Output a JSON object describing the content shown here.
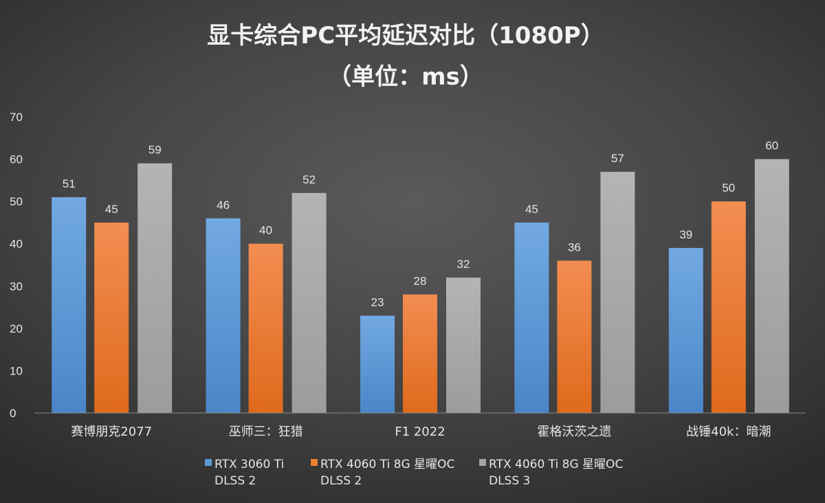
{
  "chart_data": {
    "type": "bar",
    "title": "显卡综合PC平均延迟对比（1080P）",
    "subtitle": "（单位：ms）",
    "xlabel": "",
    "ylabel": "",
    "ylim": [
      0,
      70
    ],
    "yticks": [
      0,
      10,
      20,
      30,
      40,
      50,
      60,
      70
    ],
    "grid": false,
    "legend_position": "bottom",
    "categories": [
      "赛博朋克2077",
      "巫师三：狂猎",
      "F1 2022",
      "霍格沃茨之遗",
      "战锤40k：暗潮"
    ],
    "series": [
      {
        "name": "RTX 3060 Ti DLSS 2",
        "name_lines": [
          "RTX 3060 Ti",
          "DLSS 2"
        ],
        "color": "#5b9bd5",
        "values": [
          51,
          46,
          23,
          45,
          39
        ]
      },
      {
        "name": "RTX 4060 Ti 8G 星曜OC DLSS 2",
        "name_lines": [
          "RTX 4060 Ti 8G 星曜OC",
          "DLSS 2"
        ],
        "color": "#ed7d31",
        "values": [
          45,
          40,
          28,
          36,
          50
        ]
      },
      {
        "name": "RTX 4060 Ti 8G 星曜OC DLSS 3",
        "name_lines": [
          "RTX 4060 Ti 8G 星曜OC",
          "DLSS 3"
        ],
        "color": "#a5a5a5",
        "values": [
          59,
          52,
          32,
          57,
          60
        ]
      }
    ]
  }
}
